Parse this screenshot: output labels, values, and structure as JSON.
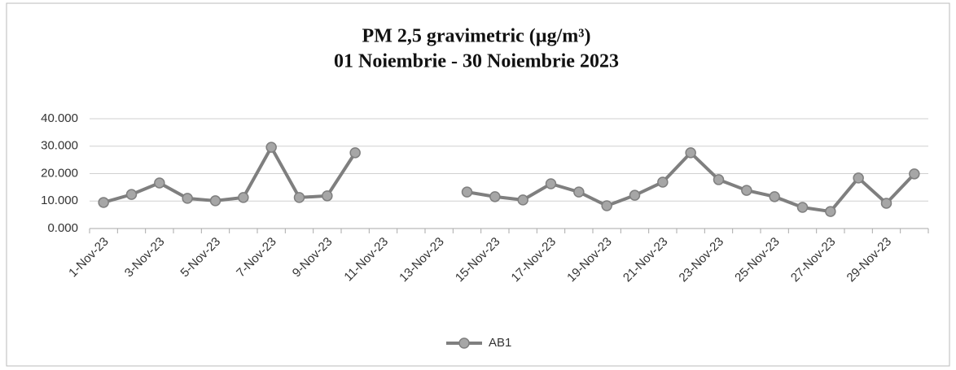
{
  "chart_data": {
    "type": "line",
    "title": "PM 2,5 gravimetric (µg/m³)",
    "subtitle": "01 Noiembrie - 30 Noiembrie 2023",
    "categories": [
      "1-Nov-23",
      null,
      "3-Nov-23",
      null,
      "5-Nov-23",
      null,
      "7-Nov-23",
      null,
      "9-Nov-23",
      null,
      "11-Nov-23",
      null,
      "13-Nov-23",
      null,
      "15-Nov-23",
      null,
      "17-Nov-23",
      null,
      "19-Nov-23",
      null,
      "21-Nov-23",
      null,
      "23-Nov-23",
      null,
      "25-Nov-23",
      null,
      "27-Nov-23",
      null,
      "29-Nov-23",
      null
    ],
    "series": [
      {
        "name": "AB1",
        "color": "#7f7f7f",
        "values": [
          9.5,
          12.4,
          16.6,
          11.0,
          10.1,
          11.3,
          29.6,
          11.3,
          11.9,
          27.6,
          null,
          null,
          null,
          13.3,
          11.6,
          10.4,
          16.3,
          13.3,
          8.3,
          12.1,
          16.9,
          27.6,
          17.8,
          13.9,
          11.6,
          7.7,
          6.2,
          18.4,
          9.2,
          19.9
        ]
      }
    ],
    "ylim": [
      0,
      40
    ],
    "yticks": [
      {
        "value": 0,
        "label": "0.000"
      },
      {
        "value": 10,
        "label": "10.000"
      },
      {
        "value": 20,
        "label": "20.000"
      },
      {
        "value": 30,
        "label": "30.000"
      },
      {
        "value": 40,
        "label": "40.000"
      }
    ],
    "grid": true,
    "legend": "bottom"
  }
}
